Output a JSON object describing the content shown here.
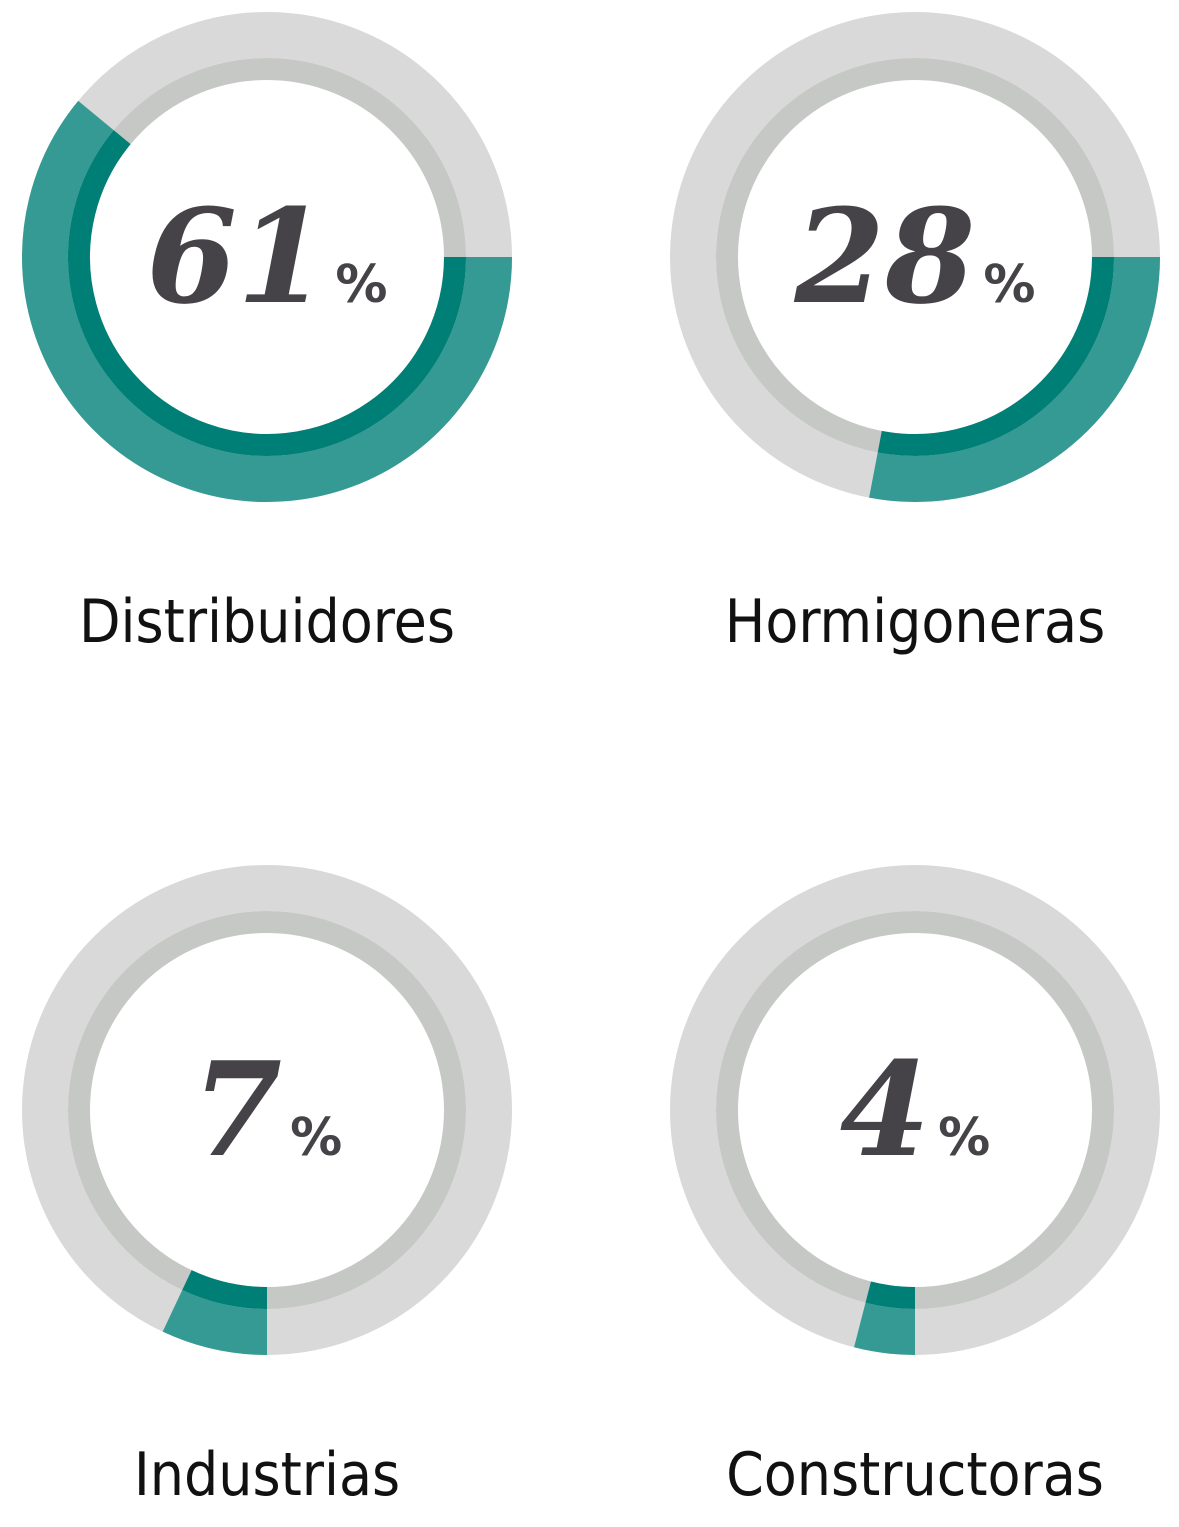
{
  "chart_data": {
    "type": "donut",
    "unit": "%",
    "categories": [
      "Distribuidores",
      "Hormigoneras",
      "Industrias",
      "Constructoras"
    ],
    "values": [
      61,
      28,
      7,
      4
    ],
    "color": "#359a94",
    "inner_color": "#007f76",
    "track_color": "#d9d9d9",
    "inner_track_color": "#c6c8c5"
  }
}
